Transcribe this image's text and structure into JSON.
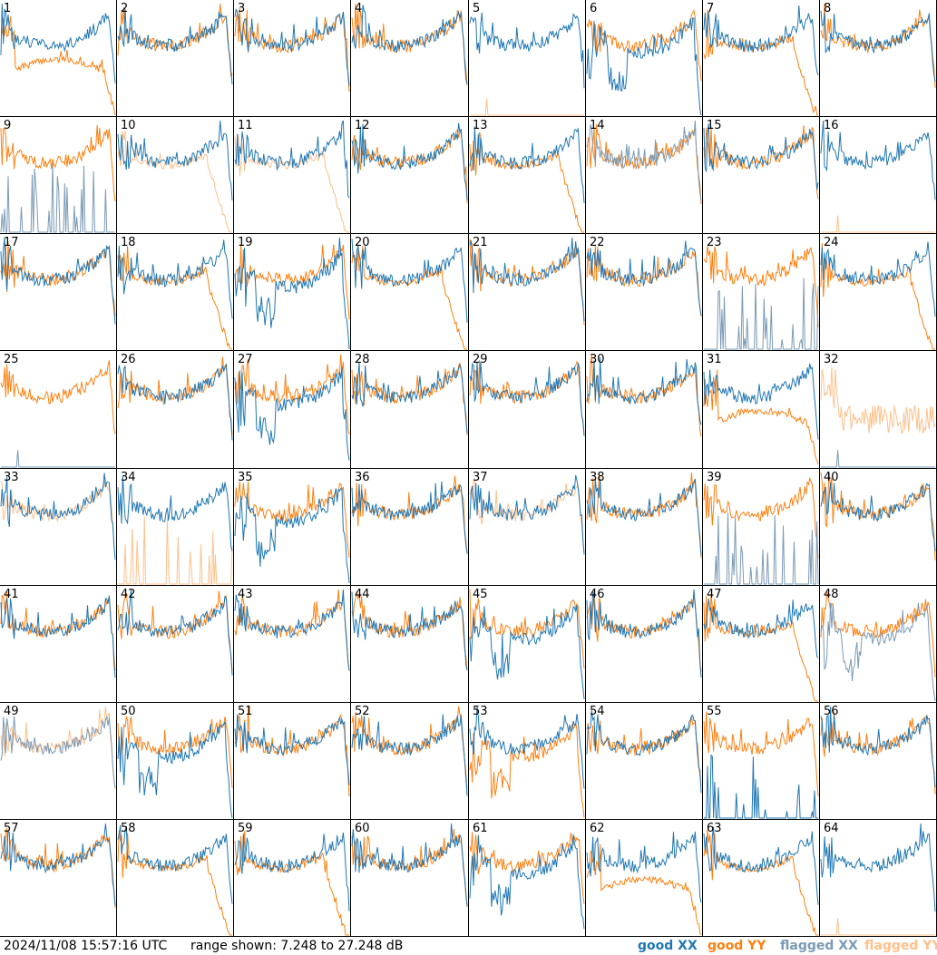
{
  "footer": {
    "timestamp": "2024/11/08 15:57:16 UTC",
    "range_text": "range shown: 7.248 to 27.248 dB"
  },
  "legend": [
    {
      "label": "good XX",
      "color": "#1f77b4"
    },
    {
      "label": "good YY",
      "color": "#ff7f0e"
    },
    {
      "label": "flagged XX",
      "color": "#7a9ab5"
    },
    {
      "label": "flagged YY",
      "color": "#ffc08a"
    }
  ],
  "chart_data": {
    "type": "line",
    "layout": "8x8 small multiples",
    "ylim_db": [
      7.248,
      27.248
    ],
    "series_names": [
      "good XX",
      "good YY",
      "flagged XX",
      "flagged YY"
    ],
    "tiles": [
      {
        "id": "1",
        "xx": "good",
        "yy": "good",
        "xx_shape": "bathtub",
        "yy_shape": "drop_mid"
      },
      {
        "id": "2",
        "xx": "good",
        "yy": "good",
        "xx_shape": "bathtub",
        "yy_shape": "bathtub"
      },
      {
        "id": "3",
        "xx": "good",
        "yy": "good",
        "xx_shape": "bathtub",
        "yy_shape": "bathtub"
      },
      {
        "id": "4",
        "xx": "good",
        "yy": "good",
        "xx_shape": "bathtub",
        "yy_shape": "bathtub"
      },
      {
        "id": "5",
        "xx": "good",
        "yy": "flagged",
        "xx_shape": "bathtub",
        "yy_shape": "flat_zero"
      },
      {
        "id": "6",
        "xx": "good",
        "yy": "good",
        "xx_shape": "deep_dip",
        "yy_shape": "bathtub"
      },
      {
        "id": "7",
        "xx": "good",
        "yy": "good",
        "xx_shape": "bathtub",
        "yy_shape": "drop_end"
      },
      {
        "id": "8",
        "xx": "good",
        "yy": "good",
        "xx_shape": "bathtub",
        "yy_shape": "bathtub"
      },
      {
        "id": "9",
        "xx": "flagged",
        "yy": "good",
        "xx_shape": "spikes_low",
        "yy_shape": "bathtub"
      },
      {
        "id": "10",
        "xx": "good",
        "yy": "flagged",
        "xx_shape": "bathtub",
        "yy_shape": "drop_end"
      },
      {
        "id": "11",
        "xx": "good",
        "yy": "flagged",
        "xx_shape": "bathtub",
        "yy_shape": "drop_end"
      },
      {
        "id": "12",
        "xx": "good",
        "yy": "good",
        "xx_shape": "bathtub",
        "yy_shape": "bathtub"
      },
      {
        "id": "13",
        "xx": "good",
        "yy": "good",
        "xx_shape": "bathtub",
        "yy_shape": "drop_end"
      },
      {
        "id": "14",
        "xx": "flagged",
        "yy": "good",
        "xx_shape": "bathtub",
        "yy_shape": "bathtub"
      },
      {
        "id": "15",
        "xx": "good",
        "yy": "good",
        "xx_shape": "bathtub",
        "yy_shape": "bathtub"
      },
      {
        "id": "16",
        "xx": "good",
        "yy": "flagged",
        "xx_shape": "bathtub",
        "yy_shape": "flat_zero"
      },
      {
        "id": "17",
        "xx": "good",
        "yy": "good",
        "xx_shape": "bathtub",
        "yy_shape": "bathtub"
      },
      {
        "id": "18",
        "xx": "good",
        "yy": "good",
        "xx_shape": "bathtub",
        "yy_shape": "drop_end"
      },
      {
        "id": "19",
        "xx": "good",
        "yy": "good",
        "xx_shape": "deep_dip",
        "yy_shape": "bathtub"
      },
      {
        "id": "20",
        "xx": "good",
        "yy": "good",
        "xx_shape": "bathtub",
        "yy_shape": "drop_end"
      },
      {
        "id": "21",
        "xx": "good",
        "yy": "good",
        "xx_shape": "bathtub",
        "yy_shape": "bathtub"
      },
      {
        "id": "22",
        "xx": "good",
        "yy": "good",
        "xx_shape": "bathtub",
        "yy_shape": "bathtub"
      },
      {
        "id": "23",
        "xx": "flagged",
        "yy": "good",
        "xx_shape": "spikes_low",
        "yy_shape": "bathtub"
      },
      {
        "id": "24",
        "xx": "good",
        "yy": "good",
        "xx_shape": "bathtub",
        "yy_shape": "drop_end"
      },
      {
        "id": "25",
        "xx": "flagged",
        "yy": "good",
        "xx_shape": "flat_zero",
        "yy_shape": "bathtub"
      },
      {
        "id": "26",
        "xx": "good",
        "yy": "good",
        "xx_shape": "bathtub",
        "yy_shape": "bathtub"
      },
      {
        "id": "27",
        "xx": "good",
        "yy": "good",
        "xx_shape": "deep_dip",
        "yy_shape": "bathtub"
      },
      {
        "id": "28",
        "xx": "good",
        "yy": "good",
        "xx_shape": "bathtub",
        "yy_shape": "bathtub"
      },
      {
        "id": "29",
        "xx": "good",
        "yy": "good",
        "xx_shape": "bathtub",
        "yy_shape": "bathtub"
      },
      {
        "id": "30",
        "xx": "good",
        "yy": "good",
        "xx_shape": "bathtub",
        "yy_shape": "bathtub"
      },
      {
        "id": "31",
        "xx": "good",
        "yy": "good",
        "xx_shape": "bathtub",
        "yy_shape": "drop_mid"
      },
      {
        "id": "32",
        "xx": "flagged",
        "yy": "flagged",
        "xx_shape": "flat_zero",
        "yy_shape": "noisy_low"
      },
      {
        "id": "33",
        "xx": "good",
        "yy": "flagged",
        "xx_shape": "bathtub",
        "yy_shape": "bathtub"
      },
      {
        "id": "34",
        "xx": "good",
        "yy": "flagged",
        "xx_shape": "bathtub",
        "yy_shape": "spikes_low"
      },
      {
        "id": "35",
        "xx": "good",
        "yy": "good",
        "xx_shape": "deep_dip",
        "yy_shape": "bathtub"
      },
      {
        "id": "36",
        "xx": "good",
        "yy": "good",
        "xx_shape": "bathtub",
        "yy_shape": "bathtub"
      },
      {
        "id": "37",
        "xx": "good",
        "yy": "flagged",
        "xx_shape": "bathtub",
        "yy_shape": "bathtub"
      },
      {
        "id": "38",
        "xx": "good",
        "yy": "good",
        "xx_shape": "bathtub",
        "yy_shape": "bathtub"
      },
      {
        "id": "39",
        "xx": "flagged",
        "yy": "good",
        "xx_shape": "spikes_low",
        "yy_shape": "bathtub"
      },
      {
        "id": "40",
        "xx": "good",
        "yy": "good",
        "xx_shape": "bathtub",
        "yy_shape": "bathtub"
      },
      {
        "id": "41",
        "xx": "good",
        "yy": "good",
        "xx_shape": "bathtub",
        "yy_shape": "bathtub"
      },
      {
        "id": "42",
        "xx": "good",
        "yy": "good",
        "xx_shape": "bathtub",
        "yy_shape": "bathtub"
      },
      {
        "id": "43",
        "xx": "good",
        "yy": "good",
        "xx_shape": "bathtub",
        "yy_shape": "bathtub"
      },
      {
        "id": "44",
        "xx": "good",
        "yy": "good",
        "xx_shape": "bathtub",
        "yy_shape": "bathtub"
      },
      {
        "id": "45",
        "xx": "good",
        "yy": "good",
        "xx_shape": "deep_dip",
        "yy_shape": "bathtub"
      },
      {
        "id": "46",
        "xx": "good",
        "yy": "good",
        "xx_shape": "bathtub",
        "yy_shape": "bathtub"
      },
      {
        "id": "47",
        "xx": "good",
        "yy": "good",
        "xx_shape": "bathtub",
        "yy_shape": "drop_end"
      },
      {
        "id": "48",
        "xx": "flagged",
        "yy": "good",
        "xx_shape": "deep_dip",
        "yy_shape": "bathtub"
      },
      {
        "id": "49",
        "xx": "flagged",
        "yy": "flagged",
        "xx_shape": "bathtub",
        "yy_shape": "bathtub"
      },
      {
        "id": "50",
        "xx": "good",
        "yy": "good",
        "xx_shape": "deep_dip",
        "yy_shape": "bathtub"
      },
      {
        "id": "51",
        "xx": "good",
        "yy": "good",
        "xx_shape": "bathtub",
        "yy_shape": "bathtub"
      },
      {
        "id": "52",
        "xx": "good",
        "yy": "good",
        "xx_shape": "bathtub",
        "yy_shape": "bathtub"
      },
      {
        "id": "53",
        "xx": "good",
        "yy": "good",
        "xx_shape": "bathtub",
        "yy_shape": "deep_dip"
      },
      {
        "id": "54",
        "xx": "good",
        "yy": "good",
        "xx_shape": "bathtub",
        "yy_shape": "bathtub"
      },
      {
        "id": "55",
        "xx": "good",
        "yy": "good",
        "xx_shape": "spikes_low",
        "yy_shape": "bathtub"
      },
      {
        "id": "56",
        "xx": "good",
        "yy": "good",
        "xx_shape": "bathtub",
        "yy_shape": "bathtub"
      },
      {
        "id": "57",
        "xx": "good",
        "yy": "good",
        "xx_shape": "bathtub",
        "yy_shape": "bathtub"
      },
      {
        "id": "58",
        "xx": "good",
        "yy": "good",
        "xx_shape": "bathtub",
        "yy_shape": "drop_end"
      },
      {
        "id": "59",
        "xx": "good",
        "yy": "good",
        "xx_shape": "bathtub",
        "yy_shape": "drop_end"
      },
      {
        "id": "60",
        "xx": "good",
        "yy": "good",
        "xx_shape": "bathtub",
        "yy_shape": "bathtub"
      },
      {
        "id": "61",
        "xx": "good",
        "yy": "good",
        "xx_shape": "deep_dip",
        "yy_shape": "bathtub"
      },
      {
        "id": "62",
        "xx": "good",
        "yy": "good",
        "xx_shape": "bathtub",
        "yy_shape": "drop_mid"
      },
      {
        "id": "63",
        "xx": "good",
        "yy": "good",
        "xx_shape": "bathtub",
        "yy_shape": "drop_end"
      },
      {
        "id": "64",
        "xx": "good",
        "yy": "flagged",
        "xx_shape": "bathtub",
        "yy_shape": "flat_zero"
      }
    ]
  }
}
